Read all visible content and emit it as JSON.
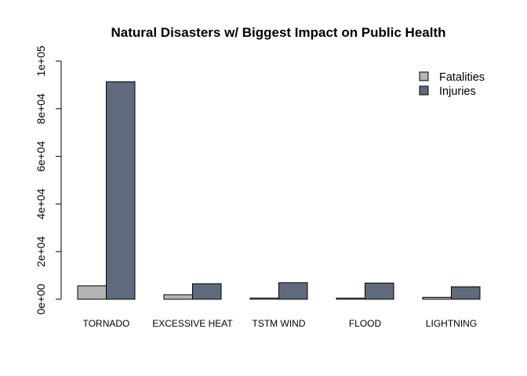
{
  "chart_data": {
    "type": "bar",
    "title": "Natural Disasters w/ Biggest Impact on Public Health",
    "xlabel": "",
    "ylabel": "",
    "categories": [
      "TORNADO",
      "EXCESSIVE HEAT",
      "TSTM WIND",
      "FLOOD",
      "LIGHTNING"
    ],
    "series": [
      {
        "name": "Fatalities",
        "color": "#b3b3b3",
        "values": [
          5633,
          1903,
          504,
          470,
          816
        ]
      },
      {
        "name": "Injuries",
        "color": "#5f6b7c",
        "values": [
          91346,
          6525,
          6957,
          6789,
          5230
        ]
      }
    ],
    "ylim": [
      0,
      100000
    ],
    "yticks": [
      0,
      20000,
      40000,
      60000,
      80000,
      100000
    ],
    "ytick_labels": [
      "0e+00",
      "2e+04",
      "4e+04",
      "6e+04",
      "8e+04",
      "1e+05"
    ],
    "grid": false,
    "legend_position": "top-right"
  }
}
